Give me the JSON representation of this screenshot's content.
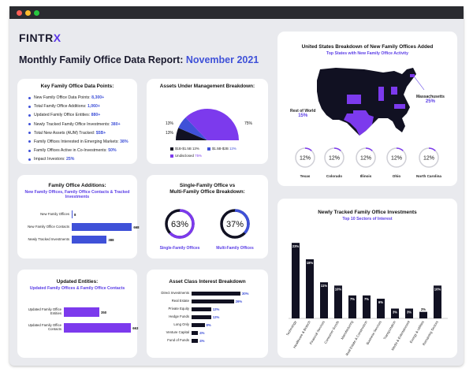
{
  "brand": {
    "logo_text": "FINTR",
    "logo_x": "X",
    "accent": "#5c37e8",
    "blue": "#3f51d8",
    "dark": "#111122"
  },
  "report": {
    "title": "Monthly Family Office Data Report: ",
    "month": "November 2021"
  },
  "key_data_points": {
    "title": "Key Family Office Data Points:",
    "items": [
      {
        "label": "New Family Office Data Points: ",
        "value": "8,300+"
      },
      {
        "label": "Total Family Office Additions: ",
        "value": "1,060+"
      },
      {
        "label": "Updated Family Office Entities: ",
        "value": "880+"
      },
      {
        "label": "Newly Tracked Family Office Investments: ",
        "value": "380+"
      },
      {
        "label": "Total New Assets (AUM) Tracked: ",
        "value": "$5B+"
      },
      {
        "label": "Family Offices Interested in Emerging Markets: ",
        "value": "38%"
      },
      {
        "label": "Family Offices Active in Co-Investments: ",
        "value": "50%"
      },
      {
        "label": "Impact Investors: ",
        "value": "25%"
      }
    ]
  },
  "aum": {
    "title": "Assets Under Management Breakdown:",
    "chart_data": {
      "type": "pie",
      "title": "Assets Under Management Breakdown:",
      "categories": [
        "$1B-$1.5B",
        "$1.5B-$2B",
        "Undisclosed"
      ],
      "values": [
        13,
        13,
        75
      ],
      "value_labels": [
        "13%",
        "13%",
        "75%"
      ],
      "colors": [
        "#111122",
        "#3f51d8",
        "#7c3aed"
      ]
    }
  },
  "additions": {
    "title": "Family Office Additions:",
    "subtitle": "New Family Offices, Family Office Contacts & Tracked Investments",
    "chart_data": {
      "type": "bar",
      "orientation": "horizontal",
      "categories": [
        "New Family Offices",
        "New Family Office Contacts",
        "Newly Tracked Investments"
      ],
      "values": [
        8,
        668,
        388
      ],
      "xlim": [
        0,
        700
      ]
    }
  },
  "single_multi": {
    "title_line1": "Single-Family Office vs",
    "title_line2": "Multi-Family Office Breakdown:",
    "single": {
      "value": 63,
      "text": "63%",
      "label": "Single-Family Offices"
    },
    "multi": {
      "value": 37,
      "text": "37%",
      "label": "Multi-Family Offices"
    }
  },
  "updated": {
    "title": "Updated Entities:",
    "subtitle": "Updated Family Offices & Family Office Contacts",
    "chart_data": {
      "type": "bar",
      "orientation": "horizontal",
      "categories": [
        "Updated Family Office Entities",
        "Updated Family Office Contacts"
      ],
      "values": [
        350,
        663
      ],
      "xlim": [
        0,
        700
      ]
    }
  },
  "asset_class": {
    "title": "Asset Class Interest Breakdown",
    "chart_data": {
      "type": "bar",
      "orientation": "horizontal",
      "categories": [
        "Direct Investments",
        "Real Estate",
        "Private Equity",
        "Hedge Funds",
        "Long Only",
        "Venture Capital",
        "Fund of Funds"
      ],
      "values": [
        30,
        26,
        12,
        12,
        8,
        4,
        4
      ],
      "value_labels": [
        "30%",
        "26%",
        "12%",
        "12%",
        "8%",
        "4%",
        "4%"
      ],
      "xlim": [
        0,
        32
      ]
    }
  },
  "us_map": {
    "title": "United States Breakdown of New Family Offices Added",
    "subtitle": "Top States with New Family Office Activity",
    "massachusetts": {
      "label": "Massachusetts",
      "value": "25%"
    },
    "rest_of_world": {
      "label": "Rest of World",
      "value": "15%"
    },
    "states": [
      {
        "name": "Texas",
        "value": 12,
        "text": "12%"
      },
      {
        "name": "Colorado",
        "value": 12,
        "text": "12%"
      },
      {
        "name": "Illinois",
        "value": 12,
        "text": "12%"
      },
      {
        "name": "Ohio",
        "value": 12,
        "text": "12%"
      },
      {
        "name": "North Carolina",
        "value": 12,
        "text": "12%"
      }
    ]
  },
  "sectors": {
    "title": "Newly Tracked Family Office Investments",
    "subtitle": "Top 10 Sectors of Interest",
    "chart_data": {
      "type": "bar",
      "title": "Newly Tracked Family Office Investments",
      "categories": [
        "Technology",
        "Healthcare & Biotech",
        "Financial Services",
        "Consumer Goods",
        "Manufacturing",
        "Real Estate & Construction",
        "Business Services",
        "Transportation",
        "Media & Entertainment",
        "Energy & Utilities",
        "Remaining Sectors"
      ],
      "values": [
        23,
        18,
        11,
        10,
        7,
        7,
        6,
        3,
        3,
        2,
        10
      ],
      "value_labels": [
        "23%",
        "18%",
        "11%",
        "10%",
        "7%",
        "7%",
        "6%",
        "3%",
        "3%",
        "2%",
        "10%"
      ],
      "ylim": [
        0,
        24
      ]
    }
  }
}
